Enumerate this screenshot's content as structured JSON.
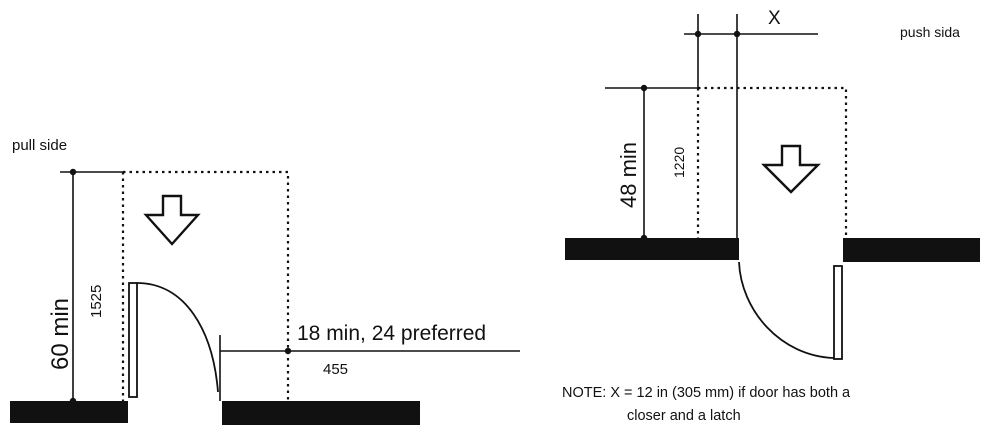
{
  "pull": {
    "side_label": "pull side",
    "depth_label": "60 min",
    "depth_mm": "1525",
    "clearance_label": "18 min, 24 preferred",
    "clearance_mm": "455"
  },
  "push": {
    "side_label": "push sida",
    "depth_label": "48 min",
    "depth_mm": "1220",
    "x_label": "X"
  },
  "note": {
    "line1": "NOTE: X = 12 in (305 mm) if door has both a",
    "line2": "closer and a latch"
  }
}
